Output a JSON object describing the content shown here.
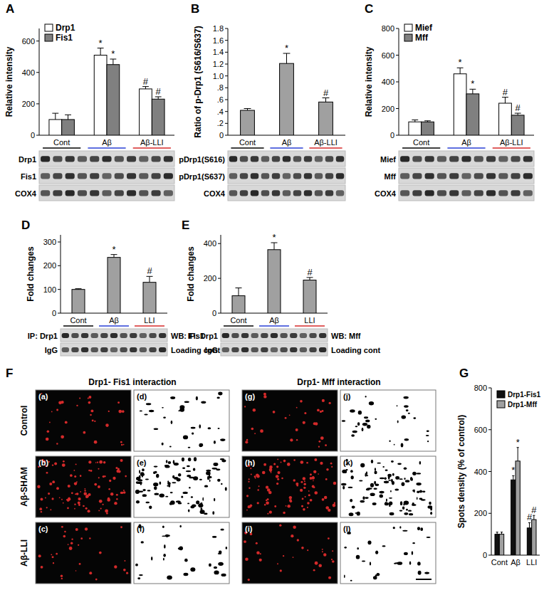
{
  "chart_data": [
    {
      "type": "bar",
      "panel": "A",
      "y_label": "Relative intensity",
      "categories": [
        "Cont",
        "Aβ",
        "Aβ-LLI"
      ],
      "series": [
        {
          "name": "Drp1",
          "color": "#ffffff",
          "values": [
            100,
            510,
            295
          ],
          "errors": [
            40,
            45,
            15
          ],
          "significance": [
            null,
            "*",
            "#"
          ]
        },
        {
          "name": "Fis1",
          "color": "#808080",
          "values": [
            100,
            450,
            230
          ],
          "errors": [
            30,
            35,
            15
          ],
          "significance": [
            null,
            "*",
            "#"
          ]
        }
      ],
      "ylim": [
        0,
        680
      ],
      "yticks": [
        0,
        200,
        400,
        600
      ],
      "legend": "upper left",
      "blot": {
        "rows": [
          "Drp1",
          "Fis1",
          "COX4"
        ]
      }
    },
    {
      "type": "bar",
      "panel": "B",
      "y_label": "Ratio of p-Drp1 (S616/S637)",
      "categories": [
        "Cont",
        "Aβ",
        "Aβ-LLI"
      ],
      "series": [
        {
          "color": "#a0a0a0",
          "values": [
            0.42,
            1.21,
            0.56
          ],
          "errors": [
            0.03,
            0.17,
            0.07
          ],
          "significance": [
            null,
            "*",
            "#"
          ]
        }
      ],
      "ylim": [
        0,
        1.8
      ],
      "yticks": [
        0,
        {
          "value": 0.2,
          "label": ".2"
        },
        {
          "value": 0.4,
          "label": ".4"
        },
        {
          "value": 0.6,
          "label": ".6"
        },
        {
          "value": 0.8,
          "label": ".8"
        },
        {
          "value": 1,
          "label": "1.0"
        },
        1.2,
        1.4,
        1.6,
        1.8
      ],
      "blot": {
        "rows": [
          "pDrp1(S616)",
          "pDrp1(S637)",
          "COX4"
        ]
      }
    },
    {
      "type": "bar",
      "panel": "C",
      "y_label": "Relative intensity",
      "categories": [
        "Cont",
        "Aβ",
        "Aβ-LLI"
      ],
      "series": [
        {
          "name": "Mief",
          "color": "#ffffff",
          "values": [
            100,
            460,
            240
          ],
          "errors": [
            15,
            45,
            45
          ],
          "significance": [
            null,
            "*",
            "#"
          ]
        },
        {
          "name": "Mff",
          "color": "#808080",
          "values": [
            100,
            310,
            150
          ],
          "errors": [
            8,
            35,
            15
          ],
          "significance": [
            null,
            "*",
            "#"
          ]
        }
      ],
      "ylim": [
        0,
        800
      ],
      "yticks": [
        0,
        200,
        400,
        600,
        800
      ],
      "legend": "upper left",
      "blot": {
        "rows": [
          "Mief",
          "Mff",
          "COX4"
        ]
      }
    },
    {
      "type": "bar",
      "panel": "D",
      "y_label": "Fold changes",
      "categories": [
        "Cont",
        "Aβ",
        "LLI"
      ],
      "series": [
        {
          "color": "#a0a0a0",
          "values": [
            100,
            235,
            130
          ],
          "errors": [
            3,
            12,
            25
          ],
          "significance": [
            null,
            "*",
            "#"
          ]
        }
      ],
      "ylim": [
        0,
        330
      ],
      "yticks": [
        0,
        100,
        200,
        300
      ],
      "blot": {
        "rows": [
          "IP: Drp1",
          "IgG"
        ],
        "side_labels": [
          "WB: Fis1",
          "Loading cont"
        ]
      }
    },
    {
      "type": "bar",
      "panel": "E",
      "y_label": "Fold changes",
      "categories": [
        "Cont",
        "Aβ",
        "LLI"
      ],
      "series": [
        {
          "color": "#a0a0a0",
          "values": [
            100,
            365,
            190
          ],
          "errors": [
            45,
            40,
            15
          ],
          "significance": [
            null,
            "*",
            "#"
          ]
        }
      ],
      "ylim": [
        0,
        450
      ],
      "yticks": [
        0,
        200,
        400
      ],
      "blot": {
        "rows": [
          "IP: Drp1",
          "IgG"
        ],
        "side_labels": [
          "WB: Mff",
          "Loading cont"
        ]
      }
    },
    {
      "type": "bar",
      "panel": "G",
      "y_label": "Spots density (% of control)",
      "categories": [
        "Cont",
        "Aβ",
        "LLI"
      ],
      "series": [
        {
          "name": "Drp1-Fis1",
          "color": "#111111",
          "values": [
            100,
            360,
            130
          ],
          "errors": [
            10,
            20,
            25
          ],
          "significance": [
            null,
            "*",
            "#"
          ]
        },
        {
          "name": "Drp1-Mff",
          "color": "#a0a0a0",
          "values": [
            100,
            450,
            170
          ],
          "errors": [
            10,
            65,
            20
          ],
          "significance": [
            null,
            "*",
            "#"
          ]
        }
      ],
      "ylim": [
        0,
        800
      ],
      "yticks": [
        0,
        200,
        400,
        600,
        800
      ],
      "legend": "upper left"
    }
  ],
  "image_panel": {
    "panel": "F",
    "titles": [
      "Drp1- Fis1 interaction",
      "Drp1- Mff interaction"
    ],
    "row_labels": [
      "Control",
      "Aβ-SHAM",
      "Aβ-LLI"
    ],
    "subpanels": [
      "(a)",
      "(b)",
      "(c)",
      "(d)",
      "(e)",
      "(f)",
      "(g)",
      "(h)",
      "(i)",
      "(j)",
      "(k)",
      "(l)"
    ]
  }
}
